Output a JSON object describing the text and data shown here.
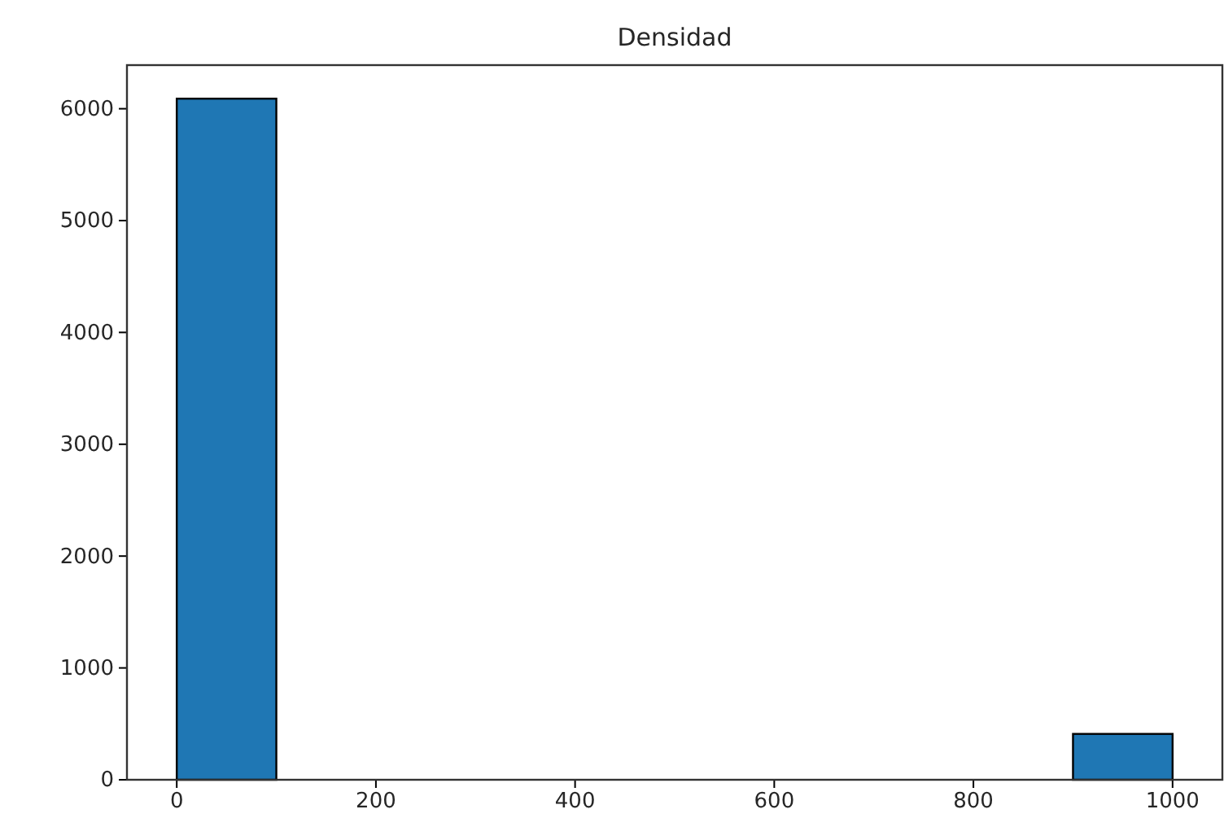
{
  "chart_data": {
    "type": "histogram",
    "title": "Densidad",
    "bins": [
      0,
      100,
      200,
      300,
      400,
      500,
      600,
      700,
      800,
      900,
      1000
    ],
    "values": [
      6090,
      0,
      0,
      0,
      0,
      0,
      0,
      0,
      0,
      410
    ],
    "color": "#1f77b4",
    "xlim": [
      -50,
      1050
    ],
    "xticks": [
      0,
      200,
      400,
      600,
      800,
      1000
    ],
    "ylim": [
      0,
      6390
    ],
    "yticks": [
      0,
      1000,
      2000,
      3000,
      4000,
      5000,
      6000
    ],
    "grid": false
  }
}
